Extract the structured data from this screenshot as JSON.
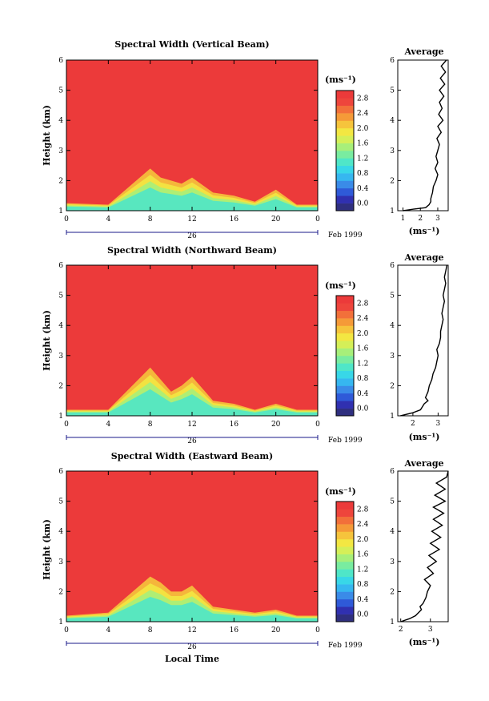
{
  "chart_data": [
    {
      "type": "heatmap",
      "title": "Spectral Width (Vertical Beam)",
      "ylabel": "Height (km)",
      "ylim": [
        1,
        6
      ],
      "yticks": [
        "1",
        "2",
        "3",
        "4",
        "5",
        "6"
      ],
      "xlim": [
        0,
        24
      ],
      "xticks": [
        "0",
        "4",
        "8",
        "12",
        "16",
        "20",
        "0"
      ],
      "date_marker": "26",
      "date_label": "Feb 1999",
      "colorbar": {
        "unit": "(ms⁻¹)",
        "labels": [
          "2.8",
          "2.4",
          "2.0",
          "1.6",
          "1.2",
          "0.8",
          "0.4",
          "0.0"
        ]
      },
      "series": [
        {
          "x": [
            0,
            4,
            8,
            9,
            10,
            11,
            12,
            14,
            16,
            18,
            20,
            22,
            24
          ],
          "y": [
            1.25,
            1.2,
            2.4,
            2.1,
            2.0,
            1.9,
            2.1,
            1.6,
            1.5,
            1.3,
            1.7,
            1.2,
            1.2
          ]
        }
      ],
      "average": {
        "title": "Average",
        "xlabel": "(ms⁻¹)",
        "xticks": [
          "1",
          "2",
          "3"
        ],
        "xlim": [
          0.7,
          3.6
        ],
        "height": [
          1.0,
          1.05,
          1.1,
          1.2,
          1.3,
          1.4,
          1.6,
          1.8,
          2.0,
          2.2,
          2.4,
          2.6,
          2.8,
          3.0,
          3.2,
          3.4,
          3.6,
          3.8,
          4.0,
          4.2,
          4.4,
          4.6,
          4.8,
          5.0,
          5.2,
          5.4,
          5.6,
          5.8,
          6.0
        ],
        "value": [
          1.0,
          1.6,
          2.3,
          2.5,
          2.6,
          2.6,
          2.7,
          2.75,
          2.9,
          3.0,
          2.85,
          3.0,
          2.9,
          3.0,
          3.1,
          2.95,
          3.2,
          3.0,
          3.3,
          3.05,
          3.25,
          3.1,
          3.35,
          3.1,
          3.4,
          3.15,
          3.45,
          3.2,
          3.5
        ]
      }
    },
    {
      "type": "heatmap",
      "title": "Spectral Width (Northward Beam)",
      "ylabel": "Height (km)",
      "ylim": [
        1,
        6
      ],
      "yticks": [
        "1",
        "2",
        "3",
        "4",
        "5",
        "6"
      ],
      "xlim": [
        0,
        24
      ],
      "xticks": [
        "0",
        "4",
        "8",
        "12",
        "16",
        "20",
        "0"
      ],
      "date_marker": "26",
      "date_label": "Feb 1999",
      "colorbar": {
        "unit": "(ms⁻¹)",
        "labels": [
          "2.8",
          "2.4",
          "2.0",
          "1.6",
          "1.2",
          "0.8",
          "0.4",
          "0.0"
        ]
      },
      "series": [
        {
          "x": [
            0,
            4,
            8,
            9,
            10,
            11,
            12,
            14,
            16,
            18,
            20,
            22,
            24
          ],
          "y": [
            1.2,
            1.2,
            2.6,
            2.2,
            1.8,
            2.0,
            2.3,
            1.5,
            1.4,
            1.2,
            1.4,
            1.2,
            1.2
          ]
        }
      ],
      "average": {
        "title": "Average",
        "xlabel": "(ms⁻¹)",
        "xticks": [
          "2",
          "3"
        ],
        "xlim": [
          1.4,
          3.4
        ],
        "height": [
          1.0,
          1.1,
          1.2,
          1.4,
          1.5,
          1.6,
          1.8,
          2.0,
          2.2,
          2.4,
          2.6,
          2.8,
          3.0,
          3.2,
          3.4,
          3.6,
          3.8,
          4.0,
          4.2,
          4.4,
          4.6,
          4.8,
          5.0,
          5.2,
          5.4,
          5.6,
          5.8,
          6.0
        ],
        "value": [
          1.5,
          2.0,
          2.3,
          2.45,
          2.6,
          2.5,
          2.6,
          2.65,
          2.75,
          2.8,
          2.9,
          2.95,
          3.0,
          2.95,
          3.05,
          3.1,
          3.1,
          3.15,
          3.2,
          3.15,
          3.2,
          3.25,
          3.2,
          3.25,
          3.3,
          3.25,
          3.3,
          3.35
        ]
      }
    },
    {
      "type": "heatmap",
      "title": "Spectral Width (Eastward Beam)",
      "ylabel": "Height (km)",
      "xlabel": "Local Time",
      "ylim": [
        1,
        6
      ],
      "yticks": [
        "1",
        "2",
        "3",
        "4",
        "5",
        "6"
      ],
      "xlim": [
        0,
        24
      ],
      "xticks": [
        "0",
        "4",
        "8",
        "12",
        "16",
        "20",
        "0"
      ],
      "date_marker": "26",
      "date_label": "Feb 1999",
      "colorbar": {
        "unit": "(ms⁻¹)",
        "labels": [
          "2.8",
          "2.4",
          "2.0",
          "1.6",
          "1.2",
          "0.8",
          "0.4",
          "0.0"
        ]
      },
      "series": [
        {
          "x": [
            0,
            4,
            8,
            9,
            10,
            11,
            12,
            14,
            16,
            18,
            20,
            22,
            24
          ],
          "y": [
            1.2,
            1.3,
            2.5,
            2.3,
            2.0,
            2.0,
            2.2,
            1.5,
            1.4,
            1.3,
            1.4,
            1.2,
            1.2
          ]
        }
      ],
      "average": {
        "title": "Average",
        "xlabel": "(ms⁻¹)",
        "xticks": [
          "2",
          "3"
        ],
        "xlim": [
          1.9,
          3.6
        ],
        "height": [
          1.0,
          1.1,
          1.2,
          1.3,
          1.4,
          1.5,
          1.6,
          1.8,
          2.0,
          2.2,
          2.4,
          2.6,
          2.8,
          3.0,
          3.2,
          3.4,
          3.6,
          3.8,
          4.0,
          4.2,
          4.4,
          4.6,
          4.8,
          5.0,
          5.2,
          5.4,
          5.6,
          5.8,
          6.0
        ],
        "value": [
          2.0,
          2.3,
          2.5,
          2.6,
          2.7,
          2.65,
          2.75,
          2.85,
          2.9,
          3.0,
          2.8,
          3.1,
          2.9,
          3.2,
          2.95,
          3.3,
          3.0,
          3.35,
          3.05,
          3.4,
          3.1,
          3.45,
          3.1,
          3.5,
          3.15,
          3.5,
          3.2,
          3.55,
          3.6
        ]
      }
    }
  ],
  "colors": {
    "scale": [
      "#2f2f7f",
      "#3030b0",
      "#2f5ad8",
      "#3a8be8",
      "#36b7f0",
      "#38d7e8",
      "#4fe6c8",
      "#79eca0",
      "#a7ef7a",
      "#d5ef58",
      "#f3e742",
      "#f6c43c",
      "#f59a38",
      "#f2703a",
      "#ee453c",
      "#ec3a3a"
    ]
  }
}
